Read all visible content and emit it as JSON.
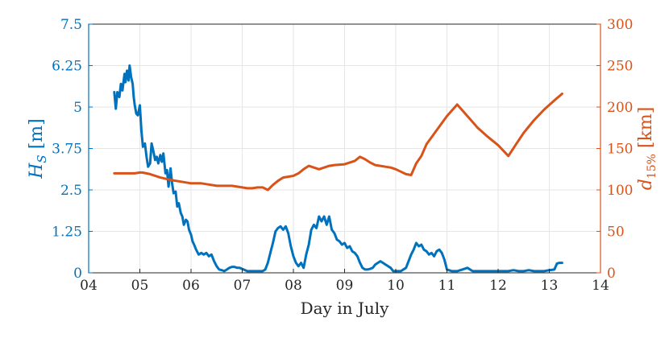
{
  "chart_data": {
    "type": "line",
    "xlabel": "Day in July",
    "ylabel_left": "H_S [m]",
    "ylabel_right": "d_15% [km]",
    "xlim": [
      4,
      14
    ],
    "ylim_left": [
      0,
      7.5
    ],
    "ylim_right": [
      0,
      300
    ],
    "x_ticks": [
      "04",
      "05",
      "06",
      "07",
      "08",
      "09",
      "10",
      "11",
      "12",
      "13",
      "14"
    ],
    "y_ticks_left": [
      "0",
      "1.25",
      "2.5",
      "3.75",
      "5",
      "6.25",
      "7.5"
    ],
    "y_ticks_right": [
      "0",
      "50",
      "100",
      "150",
      "200",
      "250",
      "300"
    ],
    "grid": true,
    "colors": {
      "left": "#0072BD",
      "right": "#D95319",
      "axis": "#262626"
    },
    "series": [
      {
        "axis": "left",
        "color": "#0072BD",
        "x": [
          4.5,
          4.53,
          4.56,
          4.6,
          4.63,
          4.66,
          4.7,
          4.72,
          4.75,
          4.78,
          4.8,
          4.83,
          4.86,
          4.88,
          4.9,
          4.93,
          4.96,
          5.0,
          5.03,
          5.06,
          5.1,
          5.13,
          5.16,
          5.2,
          5.23,
          5.26,
          5.3,
          5.33,
          5.36,
          5.4,
          5.43,
          5.46,
          5.5,
          5.53,
          5.56,
          5.6,
          5.63,
          5.66,
          5.7,
          5.73,
          5.76,
          5.8,
          5.83,
          5.86,
          5.9,
          5.93,
          5.96,
          6.0,
          6.03,
          6.06,
          6.1,
          6.15,
          6.2,
          6.25,
          6.3,
          6.35,
          6.4,
          6.45,
          6.5,
          6.55,
          6.6,
          6.65,
          6.7,
          6.75,
          6.8,
          6.85,
          6.9,
          6.95,
          7.0,
          7.1,
          7.2,
          7.3,
          7.4,
          7.45,
          7.5,
          7.55,
          7.6,
          7.65,
          7.7,
          7.75,
          7.8,
          7.85,
          7.9,
          7.95,
          8.0,
          8.05,
          8.1,
          8.15,
          8.2,
          8.25,
          8.3,
          8.35,
          8.4,
          8.45,
          8.5,
          8.55,
          8.6,
          8.65,
          8.7,
          8.75,
          8.8,
          8.85,
          8.9,
          8.95,
          9.0,
          9.05,
          9.1,
          9.15,
          9.2,
          9.25,
          9.3,
          9.35,
          9.4,
          9.45,
          9.5,
          9.55,
          9.6,
          9.65,
          9.7,
          9.75,
          9.8,
          9.85,
          9.9,
          9.95,
          10.0,
          10.1,
          10.2,
          10.25,
          10.3,
          10.35,
          10.4,
          10.45,
          10.5,
          10.55,
          10.6,
          10.65,
          10.7,
          10.75,
          10.8,
          10.85,
          10.9,
          10.95,
          11.0,
          11.1,
          11.2,
          11.3,
          11.4,
          11.5,
          11.6,
          11.7,
          11.8,
          11.9,
          12.0,
          12.1,
          12.2,
          12.3,
          12.4,
          12.5,
          12.6,
          12.7,
          12.8,
          12.9,
          13.0,
          13.1,
          13.15,
          13.2,
          13.25
        ],
        "y": [
          5.45,
          4.95,
          5.45,
          5.3,
          5.7,
          5.5,
          6.0,
          5.75,
          6.1,
          5.8,
          6.25,
          5.9,
          5.7,
          5.3,
          5.05,
          4.8,
          4.75,
          5.05,
          4.3,
          3.8,
          3.9,
          3.5,
          3.2,
          3.3,
          3.9,
          3.7,
          3.4,
          3.5,
          3.3,
          3.55,
          3.35,
          3.6,
          3.0,
          3.1,
          2.6,
          3.15,
          2.7,
          2.4,
          2.45,
          2.0,
          2.1,
          1.8,
          1.7,
          1.45,
          1.6,
          1.55,
          1.3,
          1.15,
          0.95,
          0.85,
          0.7,
          0.55,
          0.6,
          0.55,
          0.6,
          0.5,
          0.55,
          0.35,
          0.2,
          0.1,
          0.08,
          0.05,
          0.1,
          0.15,
          0.18,
          0.18,
          0.15,
          0.15,
          0.12,
          0.05,
          0.05,
          0.05,
          0.05,
          0.1,
          0.3,
          0.6,
          0.9,
          1.25,
          1.35,
          1.4,
          1.3,
          1.4,
          1.2,
          0.8,
          0.5,
          0.3,
          0.2,
          0.3,
          0.15,
          0.55,
          0.85,
          1.3,
          1.45,
          1.35,
          1.7,
          1.55,
          1.7,
          1.45,
          1.7,
          1.3,
          1.2,
          1.0,
          0.95,
          0.85,
          0.9,
          0.75,
          0.8,
          0.65,
          0.6,
          0.5,
          0.3,
          0.15,
          0.1,
          0.1,
          0.12,
          0.15,
          0.25,
          0.3,
          0.35,
          0.3,
          0.25,
          0.2,
          0.15,
          0.05,
          0.05,
          0.05,
          0.15,
          0.35,
          0.55,
          0.7,
          0.9,
          0.8,
          0.85,
          0.7,
          0.65,
          0.55,
          0.6,
          0.5,
          0.65,
          0.7,
          0.6,
          0.4,
          0.1,
          0.05,
          0.05,
          0.1,
          0.15,
          0.05,
          0.05,
          0.05,
          0.05,
          0.05,
          0.05,
          0.05,
          0.05,
          0.08,
          0.05,
          0.05,
          0.08,
          0.05,
          0.05,
          0.05,
          0.08,
          0.1,
          0.28,
          0.3,
          0.3
        ]
      },
      {
        "axis": "right",
        "color": "#D95319",
        "x": [
          4.5,
          4.7,
          4.8,
          4.9,
          5.0,
          5.05,
          5.2,
          5.4,
          5.6,
          5.8,
          6.0,
          6.1,
          6.2,
          6.3,
          6.4,
          6.5,
          6.6,
          6.8,
          6.9,
          7.0,
          7.1,
          7.2,
          7.3,
          7.4,
          7.5,
          7.6,
          7.7,
          7.8,
          8.0,
          8.1,
          8.2,
          8.3,
          8.4,
          8.5,
          8.6,
          8.7,
          8.8,
          9.0,
          9.2,
          9.3,
          9.4,
          9.5,
          9.6,
          9.7,
          9.8,
          9.9,
          10.0,
          10.1,
          10.2,
          10.3,
          10.4,
          10.5,
          10.6,
          10.8,
          11.0,
          11.2,
          11.5,
          11.6,
          11.8,
          12.0,
          12.2,
          12.35,
          12.5,
          12.7,
          12.9,
          13.1,
          13.25
        ],
        "y": [
          120,
          120,
          120,
          120,
          121,
          121,
          119,
          115,
          112,
          110,
          108,
          108,
          108,
          107,
          106,
          105,
          105,
          105,
          104,
          103,
          102,
          102,
          103,
          103,
          100,
          106,
          111,
          115,
          117,
          120,
          125,
          129,
          127,
          125,
          127,
          129,
          130,
          131,
          135,
          140,
          137,
          133,
          130,
          129,
          128,
          127,
          125,
          122,
          119,
          118,
          132,
          141,
          155,
          172,
          189,
          203,
          182,
          175,
          164,
          154,
          141,
          155,
          169,
          184,
          197,
          208,
          216
        ]
      }
    ]
  }
}
